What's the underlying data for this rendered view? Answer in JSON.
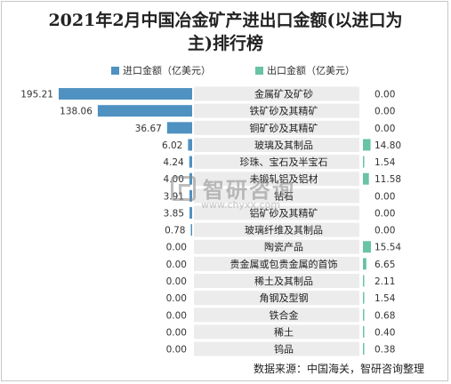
{
  "chart_data": {
    "type": "bar",
    "title": "2021年2月中国冶金矿产进出口金额(以进口为\n主)排行榜",
    "legend_position": "top",
    "categories": [
      "金属矿及矿砂",
      "铁矿砂及其精矿",
      "铜矿砂及其精矿",
      "玻璃及其制品",
      "珍珠、宝石及半宝石",
      "未锻轧铝及铝材",
      "钻石",
      "铝矿砂及其精矿",
      "玻璃纤维及其制品",
      "陶瓷产品",
      "贵金属或包贵金属的首饰",
      "稀土及其制品",
      "角钢及型钢",
      "铁合金",
      "稀土",
      "钨品"
    ],
    "series": [
      {
        "name": "进口金额（亿美元）",
        "values": [
          195.21,
          138.06,
          36.67,
          6.02,
          4.24,
          4.0,
          3.91,
          3.85,
          0.78,
          0.0,
          0.0,
          0.0,
          0.0,
          0.0,
          0.0,
          0.0
        ],
        "labels": [
          "195.21",
          "138.06",
          "36.67",
          "6.02",
          "4.24",
          "4.00",
          "3.91",
          "3.85",
          "0.78",
          "0.00",
          "0.00",
          "0.00",
          "0.00",
          "0.00",
          "0.00",
          "0.00"
        ]
      },
      {
        "name": "出口金额（亿美元）",
        "values": [
          0.0,
          0.0,
          0.0,
          14.8,
          1.54,
          11.58,
          0.0,
          0.0,
          0.0,
          15.54,
          6.65,
          2.11,
          1.54,
          0.68,
          0.4,
          0.38
        ],
        "labels": [
          "0.00",
          "0.00",
          "0.00",
          "14.80",
          "1.54",
          "11.58",
          "0.00",
          "0.00",
          "0.00",
          "15.54",
          "6.65",
          "2.11",
          "1.54",
          "0.68",
          "0.40",
          "0.38"
        ]
      }
    ]
  },
  "colors": {
    "import": "#4f91c1",
    "export": "#69c3a6",
    "label_band": "#ececec"
  },
  "watermark": {
    "brand": "智研咨询",
    "url": "www.chyxx.com"
  },
  "source": "数据来源：中国海关，智研咨询整理"
}
